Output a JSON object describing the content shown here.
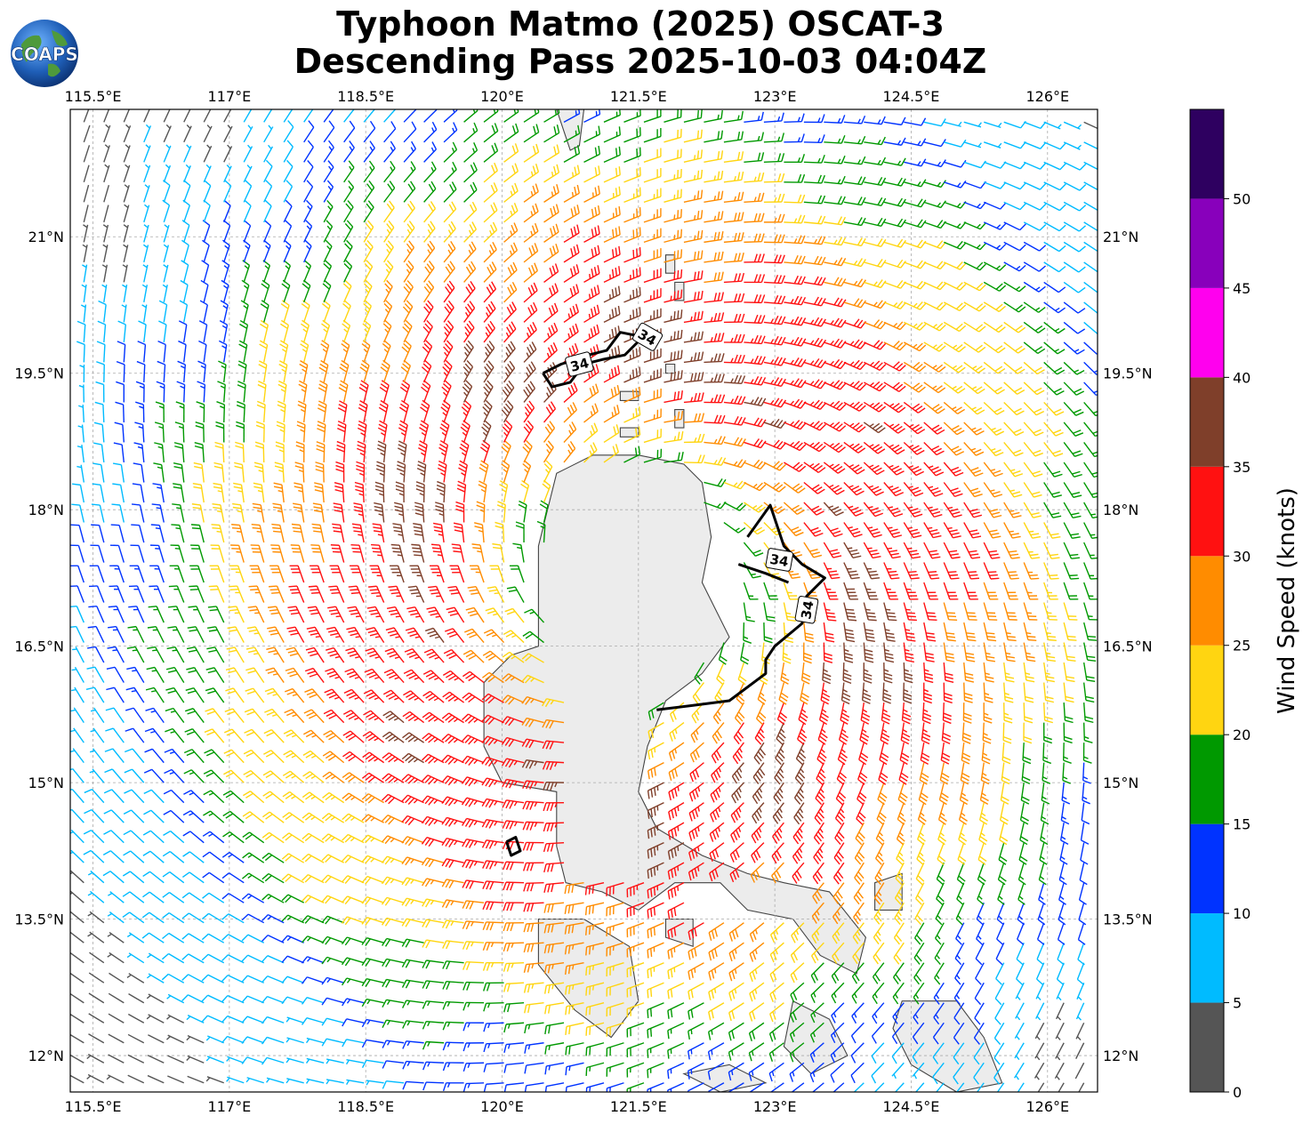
{
  "title": {
    "line1": "Typhoon Matmo (2025) OSCAT-3",
    "line2": "Descending Pass 2025-10-03 04:04Z"
  },
  "logo": {
    "text": "COAPS"
  },
  "axes": {
    "lon_labels": [
      "115.5°E",
      "117°E",
      "118.5°E",
      "120°E",
      "121.5°E",
      "123°E",
      "124.5°E",
      "126°E"
    ],
    "lat_labels": [
      "21°N",
      "19.5°N",
      "18°N",
      "16.5°N",
      "15°N",
      "13.5°N",
      "12°N"
    ],
    "lon_values": [
      115.5,
      117,
      118.5,
      120,
      121.5,
      123,
      124.5,
      126
    ],
    "lat_values": [
      21,
      19.5,
      18,
      16.5,
      15,
      13.5,
      12
    ],
    "lon_range": [
      115.25,
      126.55
    ],
    "lat_range": [
      11.6,
      22.4
    ],
    "grid": true
  },
  "colorbar": {
    "label": "Wind Speed (knots)",
    "ticks": [
      "0",
      "5",
      "10",
      "15",
      "20",
      "25",
      "30",
      "35",
      "40",
      "45",
      "50"
    ],
    "bins": [
      {
        "min": 0,
        "max": 5,
        "color": "#555555"
      },
      {
        "min": 5,
        "max": 10,
        "color": "#00bbff"
      },
      {
        "min": 10,
        "max": 15,
        "color": "#0033ff"
      },
      {
        "min": 15,
        "max": 20,
        "color": "#009900"
      },
      {
        "min": 20,
        "max": 25,
        "color": "#ffd511"
      },
      {
        "min": 25,
        "max": 30,
        "color": "#ff8c00"
      },
      {
        "min": 30,
        "max": 35,
        "color": "#ff1111"
      },
      {
        "min": 35,
        "max": 40,
        "color": "#7f3f2a"
      },
      {
        "min": 40,
        "max": 45,
        "color": "#ff00ee"
      },
      {
        "min": 45,
        "max": 50,
        "color": "#8800bb"
      },
      {
        "min": 50,
        "max": 55,
        "color": "#2e0060"
      }
    ]
  },
  "storm": {
    "center_lon": 121.5,
    "center_lat": 17.2,
    "contour_label": "34"
  },
  "land_color": "#ececec",
  "coast_color": "#444444"
}
